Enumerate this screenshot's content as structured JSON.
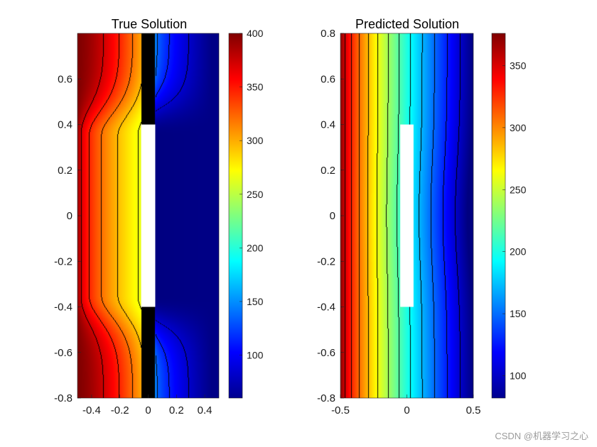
{
  "chart_data": [
    {
      "type": "heatmap",
      "title": "True Solution",
      "xlim": [
        -0.5,
        0.5
      ],
      "ylim": [
        -0.8,
        0.8
      ],
      "xticks": [
        -0.4,
        -0.2,
        0,
        0.2,
        0.4
      ],
      "xtick_labels": [
        "-0.4",
        "-0.2",
        "0",
        "0.2",
        "0.4"
      ],
      "yticks": [
        -0.8,
        -0.6,
        -0.4,
        -0.2,
        0,
        0.2,
        0.4,
        0.6
      ],
      "ytick_labels": [
        "-0.8",
        "-0.6",
        "-0.4",
        "-0.2",
        "0",
        "0.2",
        "0.4",
        "0.6"
      ],
      "colormap": "jet",
      "obstacle": {
        "x": [
          -0.05,
          0.05
        ],
        "y": [
          -0.4,
          0.4
        ]
      },
      "colorbar": {
        "clim": [
          60,
          400
        ],
        "ticks": [
          100,
          150,
          200,
          250,
          300,
          350,
          400
        ],
        "tick_labels": [
          "100",
          "150",
          "200",
          "250",
          "300",
          "350",
          "400"
        ]
      },
      "contour_count": 12
    },
    {
      "type": "heatmap",
      "title": "Predicted Solution",
      "xlim": [
        -0.5,
        0.5
      ],
      "ylim": [
        -0.8,
        0.8
      ],
      "xticks": [
        -0.5,
        0,
        0.5
      ],
      "xtick_labels": [
        "-0.5",
        "0",
        "0.5"
      ],
      "yticks": [
        -0.8,
        -0.6,
        -0.4,
        -0.2,
        0,
        0.2,
        0.4,
        0.6,
        0.8
      ],
      "ytick_labels": [
        "-0.8",
        "-0.6",
        "-0.4",
        "-0.2",
        "0",
        "0.2",
        "0.4",
        "0.6",
        "0.8"
      ],
      "colormap": "jet",
      "obstacle": {
        "x": [
          -0.05,
          0.05
        ],
        "y": [
          -0.4,
          0.4
        ]
      },
      "colorbar": {
        "clim": [
          82,
          376
        ],
        "ticks": [
          100,
          150,
          200,
          250,
          300,
          350
        ],
        "tick_labels": [
          "100",
          "150",
          "200",
          "250",
          "300",
          "350"
        ]
      },
      "contour_count": 12
    }
  ],
  "watermark": "CSDN @机器学习之心"
}
